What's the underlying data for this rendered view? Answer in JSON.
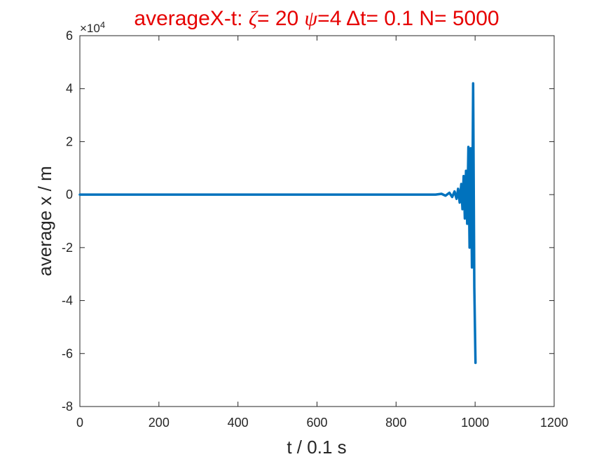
{
  "chart_data": {
    "type": "line",
    "title": {
      "prefix": "averageX-t:  ",
      "zeta_symbol": "ζ",
      "zeta_text": "= 20 ",
      "psi_symbol": "ψ",
      "psi_text": "=4 ",
      "delta_symbol": "Δ",
      "rest_text": "t= 0.1 N= 5000"
    },
    "xlabel": "t / 0.1 s",
    "ylabel": "average x / m",
    "xlim": [
      0,
      1200
    ],
    "ylim": [
      -8,
      6
    ],
    "x_ticks": [
      0,
      200,
      400,
      600,
      800,
      1000,
      1200
    ],
    "y_ticks": [
      -8,
      -6,
      -4,
      -2,
      0,
      2,
      4,
      6
    ],
    "x_tick_labels": [
      "0",
      "200",
      "400",
      "600",
      "800",
      "1000",
      "1200"
    ],
    "y_tick_labels": [
      "-8",
      "-6",
      "-4",
      "-2",
      "0",
      "2",
      "4",
      "6"
    ],
    "y_exponent": {
      "base": "×10",
      "power": "4"
    },
    "grid": false,
    "series": [
      {
        "color": "#0072bd",
        "x": [
          0,
          900,
          915,
          925,
          935,
          942,
          948,
          953,
          957,
          961,
          965,
          968,
          971,
          974,
          977,
          980,
          983,
          986,
          989,
          992,
          995,
          998,
          1001
        ],
        "y": [
          0,
          0,
          0.03,
          -0.04,
          0.07,
          -0.09,
          0.12,
          -0.16,
          0.22,
          -0.3,
          0.4,
          -0.55,
          0.7,
          -0.9,
          0.9,
          -1.1,
          1.8,
          -2.0,
          1.75,
          -2.75,
          4.2,
          -3.5,
          -6.35
        ]
      }
    ]
  }
}
